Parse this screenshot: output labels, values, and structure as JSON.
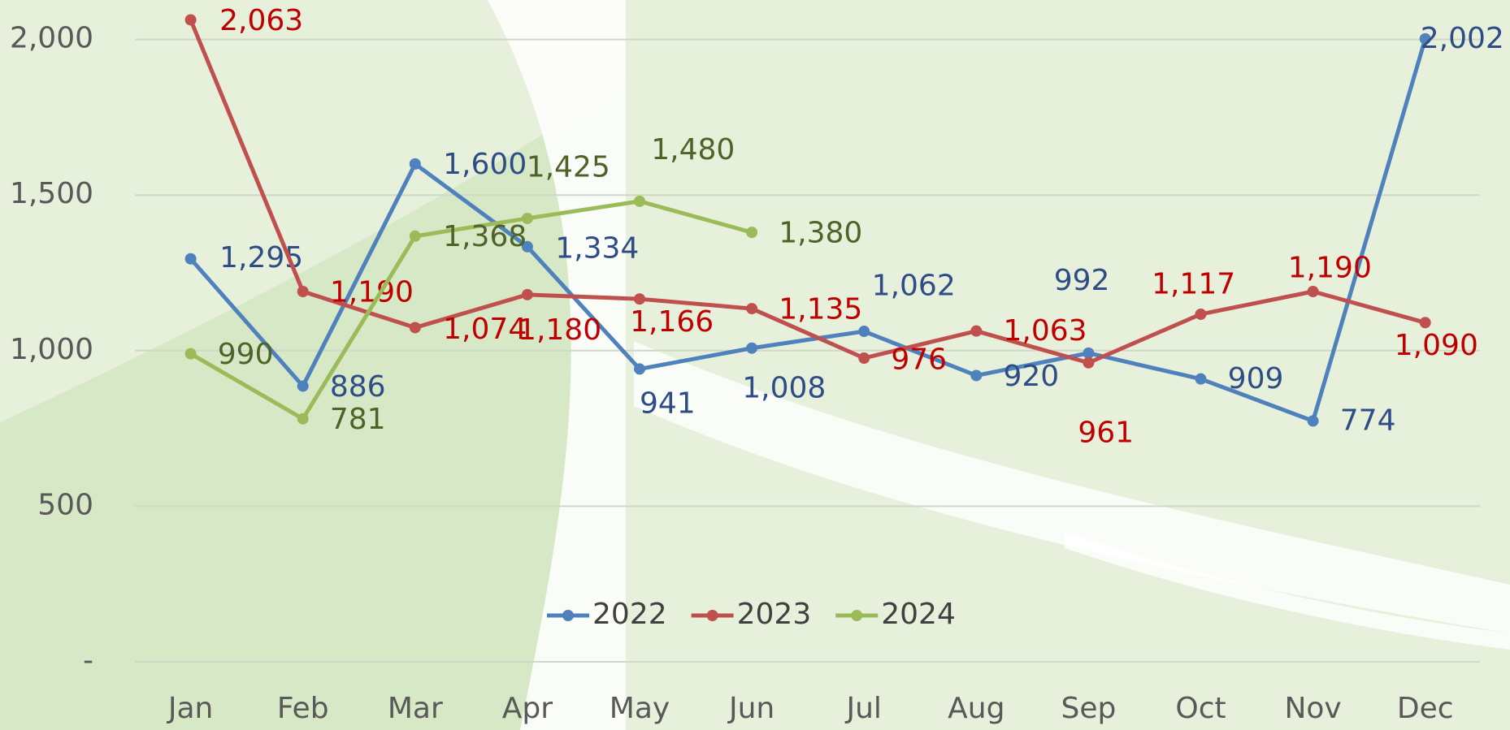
{
  "chart_data": {
    "type": "line",
    "categories": [
      "Jan",
      "Feb",
      "Mar",
      "Apr",
      "May",
      "Jun",
      "Jul",
      "Aug",
      "Sep",
      "Oct",
      "Nov",
      "Dec"
    ],
    "series": [
      {
        "name": "2022",
        "color": "#4f81bd",
        "label_color": "#2e4d87",
        "values": [
          1295,
          886,
          1600,
          1334,
          941,
          1008,
          1062,
          920,
          992,
          909,
          774,
          2002
        ],
        "value_labels": [
          "1,295",
          "886",
          "1,600",
          "1,334",
          "941",
          "1,008",
          "1,062",
          "920",
          "992",
          "909",
          "774",
          "2,002"
        ]
      },
      {
        "name": "2023",
        "color": "#c0504d",
        "label_color": "#c00000",
        "values": [
          2063,
          1190,
          1074,
          1180,
          1166,
          1135,
          976,
          1063,
          961,
          1117,
          1190,
          1090
        ],
        "value_labels": [
          "2,063",
          "1,190",
          "1,074",
          "1,180",
          "1,166",
          "1,135",
          "976",
          "1,063",
          "961",
          "1,117",
          "1,190",
          "1,090"
        ]
      },
      {
        "name": "2024",
        "color": "#9bbb59",
        "label_color": "#4f6228",
        "values": [
          990,
          781,
          1368,
          1425,
          1480,
          1380,
          null,
          null,
          null,
          null,
          null,
          null
        ],
        "value_labels": [
          "990",
          "781",
          "1,368",
          "1,425",
          "1,480",
          "1,380",
          null,
          null,
          null,
          null,
          null,
          null
        ]
      }
    ],
    "ylim": [
      0,
      2000
    ],
    "yticks": [
      {
        "value": 0,
        "label": "-"
      },
      500,
      {
        "value": 1000,
        "label": "1,000"
      },
      {
        "value": 1500,
        "label": "1,500"
      },
      {
        "value": 2000,
        "label": "2,000"
      }
    ],
    "grid": true,
    "legend": "bottom"
  }
}
